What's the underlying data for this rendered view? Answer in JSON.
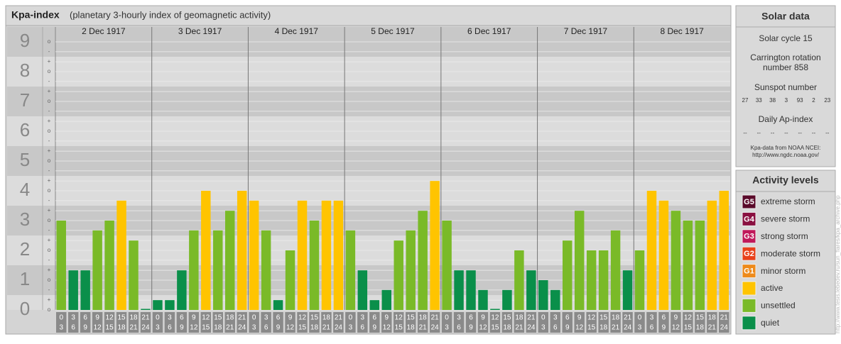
{
  "chart_data": {
    "type": "bar",
    "title": "Kpa-index",
    "subtitle": "(planetary 3-hourly index of geomagnetic activity)",
    "days": [
      "2 Dec 1917",
      "3 Dec 1917",
      "4 Dec 1917",
      "5 Dec 1917",
      "6 Dec 1917",
      "7 Dec 1917",
      "8 Dec 1917"
    ],
    "hours": [
      [
        0,
        3
      ],
      [
        3,
        6
      ],
      [
        6,
        9
      ],
      [
        9,
        12
      ],
      [
        12,
        15
      ],
      [
        15,
        18
      ],
      [
        18,
        21
      ],
      [
        21,
        24
      ]
    ],
    "values": [
      3,
      1.33,
      1.33,
      2.67,
      3,
      3.67,
      2.33,
      0,
      0.33,
      0.33,
      1.33,
      2.67,
      4,
      2.67,
      3.33,
      4,
      3.67,
      2.67,
      0.33,
      2,
      3.67,
      3,
      3.67,
      3.67,
      2.67,
      1.33,
      0.33,
      0.67,
      2.33,
      2.67,
      3.33,
      4.33,
      3,
      1.33,
      1.33,
      0.67,
      0,
      0.67,
      2,
      1.33,
      1,
      0.67,
      2.33,
      3.33,
      2,
      2,
      2.67,
      1.33,
      2,
      4,
      3.67,
      3.33,
      3,
      3,
      3.67,
      4
    ],
    "colors": [
      "#7aba28",
      "#0a8f4a",
      "#0a8f4a",
      "#7aba28",
      "#7aba28",
      "#ffc400",
      "#7aba28",
      "#0a8f4a",
      "#0a8f4a",
      "#0a8f4a",
      "#0a8f4a",
      "#7aba28",
      "#ffc400",
      "#7aba28",
      "#7aba28",
      "#ffc400",
      "#ffc400",
      "#7aba28",
      "#0a8f4a",
      "#7aba28",
      "#ffc400",
      "#7aba28",
      "#ffc400",
      "#ffc400",
      "#7aba28",
      "#0a8f4a",
      "#0a8f4a",
      "#0a8f4a",
      "#7aba28",
      "#7aba28",
      "#7aba28",
      "#ffc400",
      "#7aba28",
      "#0a8f4a",
      "#0a8f4a",
      "#0a8f4a",
      "#0a8f4a",
      "#0a8f4a",
      "#7aba28",
      "#0a8f4a",
      "#0a8f4a",
      "#0a8f4a",
      "#7aba28",
      "#7aba28",
      "#7aba28",
      "#7aba28",
      "#7aba28",
      "#0a8f4a",
      "#7aba28",
      "#ffc400",
      "#ffc400",
      "#7aba28",
      "#7aba28",
      "#7aba28",
      "#ffc400",
      "#ffc400"
    ],
    "ylim": [
      0,
      9.5
    ],
    "yticks": [
      0,
      1,
      2,
      3,
      4,
      5,
      6,
      7,
      8,
      9
    ],
    "minor_yticks": [
      {
        "value": 0,
        "label": "o"
      },
      {
        "value": 0.33,
        "label": "+"
      },
      {
        "value": 0.67,
        "label": "-"
      },
      {
        "value": 1,
        "label": "o"
      },
      {
        "value": 1.33,
        "label": "+"
      },
      {
        "value": 1.67,
        "label": "-"
      },
      {
        "value": 2,
        "label": "o"
      },
      {
        "value": 2.33,
        "label": "+"
      },
      {
        "value": 2.67,
        "label": "-"
      },
      {
        "value": 3,
        "label": "o"
      },
      {
        "value": 3.33,
        "label": "+"
      },
      {
        "value": 3.67,
        "label": "-"
      },
      {
        "value": 4,
        "label": "o"
      },
      {
        "value": 4.33,
        "label": "+"
      },
      {
        "value": 4.67,
        "label": "-"
      },
      {
        "value": 5,
        "label": "o"
      },
      {
        "value": 5.33,
        "label": "+"
      },
      {
        "value": 5.67,
        "label": "-"
      },
      {
        "value": 6,
        "label": "o"
      },
      {
        "value": 6.33,
        "label": "+"
      },
      {
        "value": 6.67,
        "label": "-"
      },
      {
        "value": 7,
        "label": "o"
      },
      {
        "value": 7.33,
        "label": "+"
      },
      {
        "value": 7.67,
        "label": "-"
      },
      {
        "value": 8,
        "label": "o"
      },
      {
        "value": 8.33,
        "label": "+"
      },
      {
        "value": 8.67,
        "label": "-"
      },
      {
        "value": 9,
        "label": "o"
      }
    ],
    "solar": {
      "title": "Solar data",
      "cycle": "Solar cycle 15",
      "carrington": [
        "Carrington rotation",
        "number 858"
      ],
      "sunspot_title": "Sunspot number",
      "sunspots": [
        27,
        33,
        38,
        3,
        93,
        2,
        23
      ],
      "ap_title": "Daily Ap-index",
      "ap": [
        "--",
        "--",
        "--",
        "--",
        "--",
        "--",
        "--"
      ],
      "source": [
        "Kpa-data from NOAA NCEI:",
        "http://www.ngdc.noaa.gov/"
      ]
    },
    "legend": {
      "title": "Activity levels",
      "items": [
        {
          "badge": "G5",
          "name": "extreme storm",
          "color": "#5a0a2a"
        },
        {
          "badge": "G4",
          "name": "severe storm",
          "color": "#8a1040"
        },
        {
          "badge": "G3",
          "name": "strong storm",
          "color": "#c0185a"
        },
        {
          "badge": "G2",
          "name": "moderate storm",
          "color": "#e8401a"
        },
        {
          "badge": "G1",
          "name": "minor storm",
          "color": "#ee8a1a"
        },
        {
          "name": "active",
          "color": "#ffc400"
        },
        {
          "name": "unsettled",
          "color": "#7aba28"
        },
        {
          "name": "quiet",
          "color": "#0a8f4a"
        }
      ]
    },
    "credit": "http://www.tesis.lebedev.ru/sun_flares/kpa_archive.php"
  }
}
